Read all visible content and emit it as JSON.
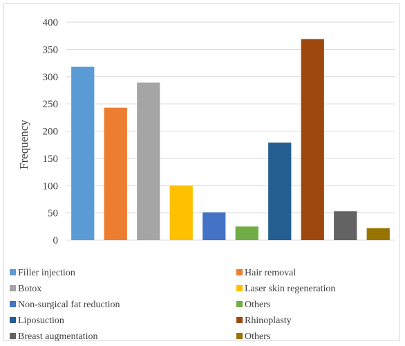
{
  "chart_data": {
    "type": "bar",
    "title": "",
    "xlabel": "",
    "ylabel": "Frequency",
    "ylim": [
      0,
      400
    ],
    "yticks": [
      0,
      50,
      100,
      150,
      200,
      250,
      300,
      350,
      400
    ],
    "grid": true,
    "legend_position": "bottom",
    "categories": [
      "Filler injection",
      "Hair removal",
      "Botox",
      "Laser skin regeneration",
      "Non-surgical fat reduction",
      "Others",
      "Liposuction",
      "Rhinoplasty",
      "Breast augmentation",
      "Others"
    ],
    "values": [
      318,
      243,
      289,
      100,
      51,
      25,
      179,
      369,
      53,
      22
    ],
    "colors": [
      "#5b9bd5",
      "#ed7d31",
      "#a5a5a5",
      "#ffc000",
      "#4472c4",
      "#70ad47",
      "#255e91",
      "#9e480e",
      "#636363",
      "#997300"
    ]
  }
}
